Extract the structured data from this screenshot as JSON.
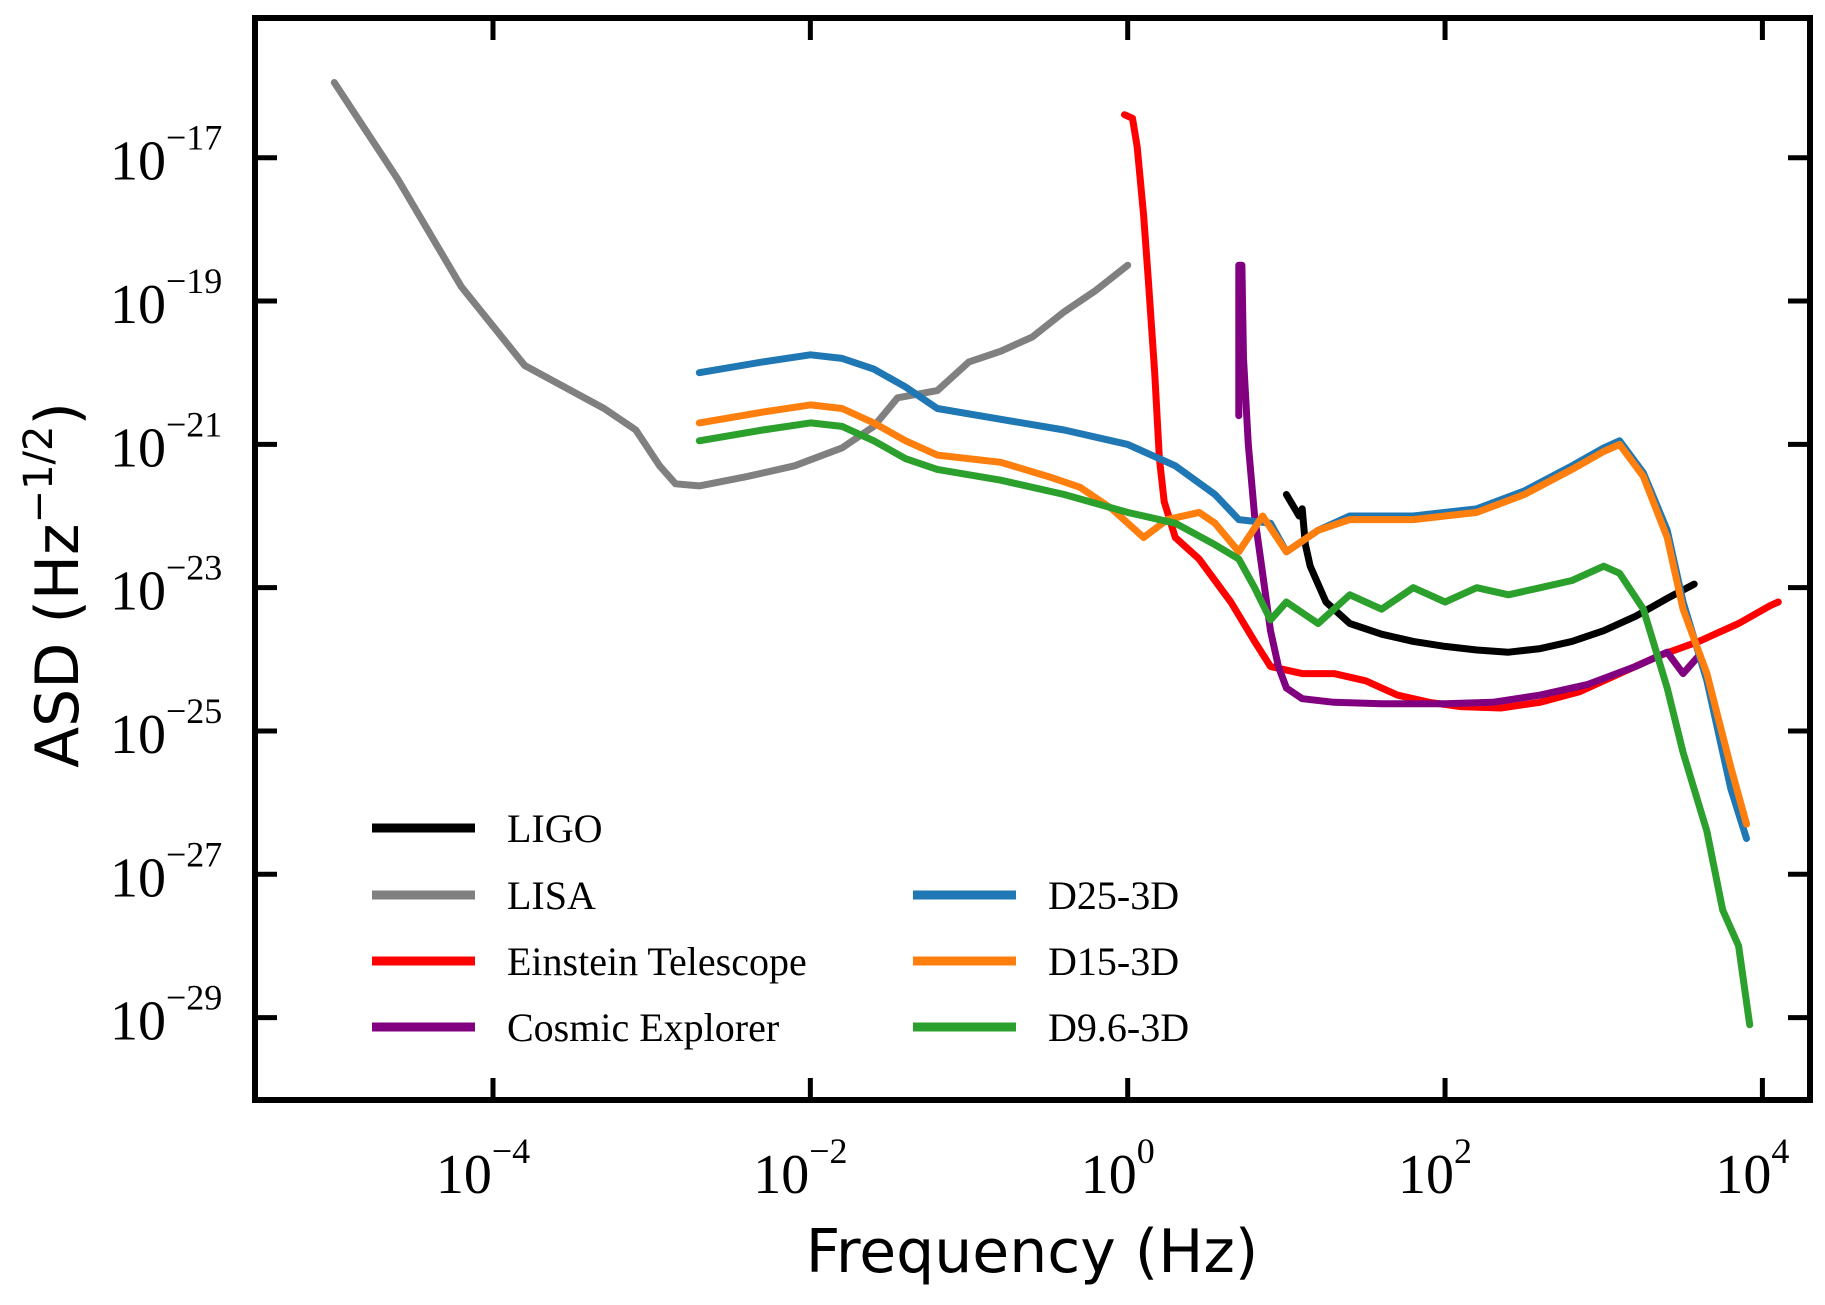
{
  "chart_data": {
    "type": "line",
    "title": "",
    "xlabel": "Frequency (Hz)",
    "ylabel_base": "ASD (Hz",
    "ylabel_exp": "−1/2",
    "ylabel_close": ")",
    "xscale": "log",
    "yscale": "log",
    "xlim_log10": [
      -5.5,
      4.3
    ],
    "ylim_log10": [
      -30.15,
      -15.05
    ],
    "xticks": [
      {
        "base": "10",
        "exp": "−4",
        "value": -4
      },
      {
        "base": "10",
        "exp": "−2",
        "value": -2
      },
      {
        "base": "10",
        "exp": "0",
        "value": 0
      },
      {
        "base": "10",
        "exp": "2",
        "value": 2
      },
      {
        "base": "10",
        "exp": "4",
        "value": 4
      }
    ],
    "yticks": [
      {
        "base": "10",
        "exp": "−17",
        "value": -17
      },
      {
        "base": "10",
        "exp": "−19",
        "value": -19
      },
      {
        "base": "10",
        "exp": "−21",
        "value": -21
      },
      {
        "base": "10",
        "exp": "−23",
        "value": -23
      },
      {
        "base": "10",
        "exp": "−25",
        "value": -25
      },
      {
        "base": "10",
        "exp": "−27",
        "value": -27
      },
      {
        "base": "10",
        "exp": "−29",
        "value": -29
      }
    ],
    "grid": false,
    "legend": {
      "placement": "lower-left",
      "columns": 2
    },
    "series": [
      {
        "name": "LIGO",
        "color": "#000000",
        "points_log10": [
          [
            1.0,
            -21.7
          ],
          [
            1.08,
            -22.0
          ],
          [
            1.1,
            -21.9
          ],
          [
            1.12,
            -22.4
          ],
          [
            1.15,
            -22.7
          ],
          [
            1.25,
            -23.2
          ],
          [
            1.4,
            -23.5
          ],
          [
            1.6,
            -23.65
          ],
          [
            1.8,
            -23.75
          ],
          [
            2.0,
            -23.82
          ],
          [
            2.2,
            -23.87
          ],
          [
            2.4,
            -23.9
          ],
          [
            2.6,
            -23.85
          ],
          [
            2.8,
            -23.75
          ],
          [
            3.0,
            -23.6
          ],
          [
            3.2,
            -23.4
          ],
          [
            3.4,
            -23.15
          ],
          [
            3.57,
            -22.95
          ]
        ]
      },
      {
        "name": "LISA",
        "color": "#808080",
        "points_log10": [
          [
            -5.0,
            -15.95
          ],
          [
            -4.6,
            -17.3
          ],
          [
            -4.2,
            -18.8
          ],
          [
            -3.8,
            -19.9
          ],
          [
            -3.3,
            -20.5
          ],
          [
            -3.1,
            -20.8
          ],
          [
            -2.95,
            -21.3
          ],
          [
            -2.85,
            -21.55
          ],
          [
            -2.7,
            -21.58
          ],
          [
            -2.4,
            -21.45
          ],
          [
            -2.1,
            -21.3
          ],
          [
            -1.8,
            -21.05
          ],
          [
            -1.6,
            -20.75
          ],
          [
            -1.45,
            -20.35
          ],
          [
            -1.2,
            -20.25
          ],
          [
            -1.0,
            -19.85
          ],
          [
            -0.8,
            -19.7
          ],
          [
            -0.6,
            -19.5
          ],
          [
            -0.4,
            -19.15
          ],
          [
            -0.2,
            -18.85
          ],
          [
            0.0,
            -18.5
          ]
        ]
      },
      {
        "name": "Einstein Telescope",
        "color": "#ff0000",
        "points_log10": [
          [
            -0.02,
            -16.4
          ],
          [
            0.03,
            -16.45
          ],
          [
            0.06,
            -16.85
          ],
          [
            0.1,
            -17.8
          ],
          [
            0.13,
            -18.7
          ],
          [
            0.17,
            -20.0
          ],
          [
            0.2,
            -21.2
          ],
          [
            0.23,
            -21.8
          ],
          [
            0.3,
            -22.3
          ],
          [
            0.45,
            -22.6
          ],
          [
            0.65,
            -23.2
          ],
          [
            0.8,
            -23.75
          ],
          [
            0.9,
            -24.1
          ],
          [
            1.1,
            -24.2
          ],
          [
            1.3,
            -24.2
          ],
          [
            1.5,
            -24.3
          ],
          [
            1.7,
            -24.5
          ],
          [
            1.9,
            -24.6
          ],
          [
            2.1,
            -24.66
          ],
          [
            2.35,
            -24.68
          ],
          [
            2.6,
            -24.6
          ],
          [
            2.85,
            -24.45
          ],
          [
            3.1,
            -24.2
          ],
          [
            3.35,
            -23.95
          ],
          [
            3.6,
            -23.75
          ],
          [
            3.85,
            -23.5
          ],
          [
            4.05,
            -23.25
          ],
          [
            4.1,
            -23.2
          ]
        ]
      },
      {
        "name": "Cosmic Explorer",
        "color": "#800080",
        "points_log10": [
          [
            0.7,
            -20.6
          ],
          [
            0.7,
            -18.5
          ],
          [
            0.72,
            -18.5
          ],
          [
            0.73,
            -19.8
          ],
          [
            0.76,
            -21.0
          ],
          [
            0.8,
            -22.0
          ],
          [
            0.85,
            -22.8
          ],
          [
            0.9,
            -23.6
          ],
          [
            0.95,
            -24.1
          ],
          [
            1.0,
            -24.4
          ],
          [
            1.1,
            -24.55
          ],
          [
            1.3,
            -24.6
          ],
          [
            1.6,
            -24.62
          ],
          [
            2.0,
            -24.62
          ],
          [
            2.3,
            -24.6
          ],
          [
            2.6,
            -24.5
          ],
          [
            2.9,
            -24.35
          ],
          [
            3.2,
            -24.1
          ],
          [
            3.4,
            -23.9
          ],
          [
            3.5,
            -24.2
          ],
          [
            3.6,
            -23.95
          ]
        ]
      },
      {
        "name": "D25-3D",
        "color": "#1f77b4",
        "points_log10": [
          [
            -2.7,
            -20.0
          ],
          [
            -2.3,
            -19.85
          ],
          [
            -2.0,
            -19.75
          ],
          [
            -1.8,
            -19.8
          ],
          [
            -1.6,
            -19.95
          ],
          [
            -1.4,
            -20.2
          ],
          [
            -1.2,
            -20.5
          ],
          [
            -0.8,
            -20.65
          ],
          [
            -0.4,
            -20.8
          ],
          [
            0.0,
            -21.0
          ],
          [
            0.3,
            -21.3
          ],
          [
            0.55,
            -21.7
          ],
          [
            0.7,
            -22.05
          ],
          [
            0.9,
            -22.1
          ],
          [
            1.0,
            -22.5
          ],
          [
            1.2,
            -22.2
          ],
          [
            1.4,
            -22.0
          ],
          [
            1.8,
            -22.0
          ],
          [
            2.2,
            -21.9
          ],
          [
            2.5,
            -21.65
          ],
          [
            2.8,
            -21.3
          ],
          [
            3.0,
            -21.05
          ],
          [
            3.1,
            -20.95
          ],
          [
            3.25,
            -21.4
          ],
          [
            3.4,
            -22.2
          ],
          [
            3.5,
            -23.2
          ],
          [
            3.65,
            -24.3
          ],
          [
            3.8,
            -25.8
          ],
          [
            3.9,
            -26.5
          ]
        ]
      },
      {
        "name": "D15-3D",
        "color": "#ff7f0e",
        "points_log10": [
          [
            -2.7,
            -20.7
          ],
          [
            -2.3,
            -20.55
          ],
          [
            -2.0,
            -20.45
          ],
          [
            -1.8,
            -20.5
          ],
          [
            -1.6,
            -20.7
          ],
          [
            -1.4,
            -20.95
          ],
          [
            -1.2,
            -21.15
          ],
          [
            -0.8,
            -21.25
          ],
          [
            -0.5,
            -21.45
          ],
          [
            -0.3,
            -21.6
          ],
          [
            -0.1,
            -21.9
          ],
          [
            0.1,
            -22.3
          ],
          [
            0.25,
            -22.05
          ],
          [
            0.45,
            -21.95
          ],
          [
            0.55,
            -22.1
          ],
          [
            0.7,
            -22.5
          ],
          [
            0.85,
            -22.0
          ],
          [
            1.0,
            -22.5
          ],
          [
            1.2,
            -22.2
          ],
          [
            1.4,
            -22.05
          ],
          [
            1.8,
            -22.05
          ],
          [
            2.2,
            -21.95
          ],
          [
            2.5,
            -21.7
          ],
          [
            2.8,
            -21.35
          ],
          [
            3.0,
            -21.1
          ],
          [
            3.1,
            -21.0
          ],
          [
            3.25,
            -21.45
          ],
          [
            3.4,
            -22.3
          ],
          [
            3.5,
            -23.3
          ],
          [
            3.65,
            -24.2
          ],
          [
            3.8,
            -25.5
          ],
          [
            3.9,
            -26.3
          ]
        ]
      },
      {
        "name": "D9.6-3D",
        "color": "#2ca02c",
        "points_log10": [
          [
            -2.7,
            -20.95
          ],
          [
            -2.3,
            -20.8
          ],
          [
            -2.0,
            -20.7
          ],
          [
            -1.8,
            -20.75
          ],
          [
            -1.6,
            -20.95
          ],
          [
            -1.4,
            -21.2
          ],
          [
            -1.2,
            -21.35
          ],
          [
            -0.8,
            -21.5
          ],
          [
            -0.4,
            -21.7
          ],
          [
            0.0,
            -21.95
          ],
          [
            0.3,
            -22.1
          ],
          [
            0.55,
            -22.4
          ],
          [
            0.7,
            -22.6
          ],
          [
            0.8,
            -23.0
          ],
          [
            0.9,
            -23.45
          ],
          [
            1.0,
            -23.2
          ],
          [
            1.2,
            -23.5
          ],
          [
            1.4,
            -23.1
          ],
          [
            1.6,
            -23.3
          ],
          [
            1.8,
            -23.0
          ],
          [
            2.0,
            -23.2
          ],
          [
            2.2,
            -23.0
          ],
          [
            2.4,
            -23.1
          ],
          [
            2.6,
            -23.0
          ],
          [
            2.8,
            -22.9
          ],
          [
            3.0,
            -22.7
          ],
          [
            3.1,
            -22.8
          ],
          [
            3.25,
            -23.3
          ],
          [
            3.4,
            -24.4
          ],
          [
            3.5,
            -25.3
          ],
          [
            3.65,
            -26.4
          ],
          [
            3.75,
            -27.5
          ],
          [
            3.85,
            -28.0
          ],
          [
            3.92,
            -29.1
          ]
        ]
      }
    ]
  }
}
